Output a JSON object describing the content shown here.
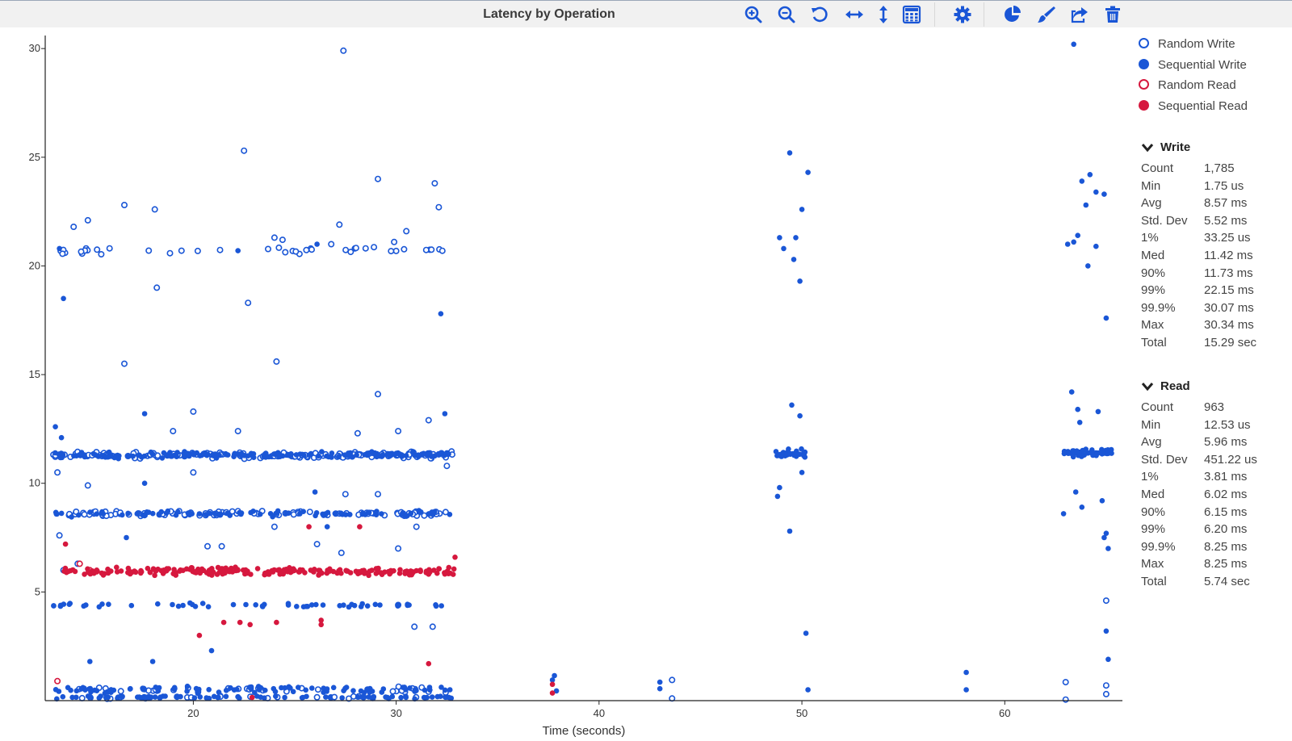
{
  "toolbar": {
    "title": "Latency by Operation",
    "icons": [
      "zoom-in-icon",
      "zoom-out-icon",
      "reset-icon",
      "horizontal-zoom-icon",
      "vertical-zoom-icon",
      "calculator-icon",
      "gear-icon",
      "pie-chart-icon",
      "paint-brush-icon",
      "share-icon",
      "trash-icon"
    ]
  },
  "legend": [
    {
      "label": "Random Write",
      "color": "#1a56d6",
      "filled": false
    },
    {
      "label": "Sequential Write",
      "color": "#1a56d6",
      "filled": true
    },
    {
      "label": "Random Read",
      "color": "#d6183e",
      "filled": false
    },
    {
      "label": "Sequential Read",
      "color": "#d6183e",
      "filled": true
    }
  ],
  "stats": {
    "write": {
      "title": "Write",
      "rows": [
        {
          "k": "Count",
          "v": "1,785"
        },
        {
          "k": "Min",
          "v": "1.75 us"
        },
        {
          "k": "Avg",
          "v": "8.57 ms"
        },
        {
          "k": "Std. Dev",
          "v": "5.52 ms"
        },
        {
          "k": "1%",
          "v": "33.25 us"
        },
        {
          "k": "Med",
          "v": "11.42 ms"
        },
        {
          "k": "90%",
          "v": "11.73 ms"
        },
        {
          "k": "99%",
          "v": "22.15 ms"
        },
        {
          "k": "99.9%",
          "v": "30.07 ms"
        },
        {
          "k": "Max",
          "v": "30.34 ms"
        },
        {
          "k": "Total",
          "v": "15.29 sec"
        }
      ]
    },
    "read": {
      "title": "Read",
      "rows": [
        {
          "k": "Count",
          "v": "963"
        },
        {
          "k": "Min",
          "v": "12.53 us"
        },
        {
          "k": "Avg",
          "v": "5.96 ms"
        },
        {
          "k": "Std. Dev",
          "v": "451.22 us"
        },
        {
          "k": "1%",
          "v": "3.81 ms"
        },
        {
          "k": "Med",
          "v": "6.02 ms"
        },
        {
          "k": "90%",
          "v": "6.15 ms"
        },
        {
          "k": "99%",
          "v": "6.20 ms"
        },
        {
          "k": "99.9%",
          "v": "8.25 ms"
        },
        {
          "k": "Max",
          "v": "8.25 ms"
        },
        {
          "k": "Total",
          "v": "5.74 sec"
        }
      ]
    }
  },
  "chart_data": {
    "type": "scatter",
    "title": "Latency by Operation",
    "xlabel": "Time (seconds)",
    "ylabel": "",
    "xlim": [
      12.7,
      65.8
    ],
    "ylim": [
      0,
      30.6
    ],
    "xticks": [
      20,
      30,
      40,
      50,
      60
    ],
    "yticks": [
      5,
      10,
      15,
      20,
      25,
      30
    ],
    "grid": false,
    "legend_position": "top-right",
    "series": [
      {
        "name": "Random Write",
        "color": "#1a56d6",
        "filled": false,
        "bands": [
          {
            "x": [
              13.1,
              32.8
            ],
            "y": 11.3,
            "n": 150,
            "jitter": 0.18
          },
          {
            "x": [
              13.1,
              32.8
            ],
            "y": 8.6,
            "n": 95,
            "jitter": 0.15
          },
          {
            "x": [
              13.1,
              32.8
            ],
            "y": 20.7,
            "n": 40,
            "jitter": 0.18
          },
          {
            "x": [
              13.1,
              32.8
            ],
            "y": 0.5,
            "n": 35,
            "jitter": 0.15
          },
          {
            "x": [
              13.1,
              32.8
            ],
            "y": 0.15,
            "n": 25,
            "jitter": 0.08
          }
        ],
        "points": [
          [
            27.4,
            29.9
          ],
          [
            22.5,
            25.3
          ],
          [
            29.1,
            24.0
          ],
          [
            31.9,
            23.8
          ],
          [
            16.6,
            22.8
          ],
          [
            18.1,
            22.6
          ],
          [
            32.1,
            22.7
          ],
          [
            14.8,
            22.1
          ],
          [
            14.1,
            21.8
          ],
          [
            27.2,
            21.9
          ],
          [
            30.5,
            21.6
          ],
          [
            24.0,
            21.3
          ],
          [
            24.4,
            21.2
          ],
          [
            29.9,
            21.1
          ],
          [
            26.8,
            21.0
          ],
          [
            22.7,
            18.3
          ],
          [
            18.2,
            19.0
          ],
          [
            16.6,
            15.5
          ],
          [
            24.1,
            15.6
          ],
          [
            29.1,
            14.1
          ],
          [
            20.0,
            13.3
          ],
          [
            22.2,
            12.4
          ],
          [
            19.0,
            12.4
          ],
          [
            28.1,
            12.3
          ],
          [
            30.1,
            12.4
          ],
          [
            31.6,
            12.9
          ],
          [
            13.3,
            10.5
          ],
          [
            20.0,
            10.5
          ],
          [
            32.5,
            10.8
          ],
          [
            14.8,
            9.9
          ],
          [
            27.5,
            9.5
          ],
          [
            29.1,
            9.5
          ],
          [
            24.0,
            8.0
          ],
          [
            31.0,
            8.0
          ],
          [
            13.4,
            7.6
          ],
          [
            20.7,
            7.1
          ],
          [
            21.4,
            7.1
          ],
          [
            26.1,
            7.2
          ],
          [
            27.3,
            6.8
          ],
          [
            30.1,
            7.0
          ],
          [
            13.6,
            6.0
          ],
          [
            14.3,
            6.3
          ],
          [
            30.1,
            4.4
          ],
          [
            30.9,
            3.4
          ],
          [
            31.8,
            3.4
          ],
          [
            43.6,
            0.95
          ],
          [
            43.6,
            0.1
          ],
          [
            63.0,
            0.85
          ],
          [
            63.0,
            0.05
          ],
          [
            65.0,
            4.6
          ],
          [
            65.0,
            0.7
          ],
          [
            65.0,
            0.3
          ]
        ]
      },
      {
        "name": "Sequential Write",
        "color": "#1a56d6",
        "filled": true,
        "bands": [
          {
            "x": [
              13.1,
              32.8
            ],
            "y": 11.3,
            "n": 170,
            "jitter": 0.18
          },
          {
            "x": [
              13.1,
              32.8
            ],
            "y": 8.6,
            "n": 90,
            "jitter": 0.15
          },
          {
            "x": [
              13.1,
              32.8
            ],
            "y": 4.4,
            "n": 55,
            "jitter": 0.12
          },
          {
            "x": [
              13.1,
              32.8
            ],
            "y": 0.5,
            "n": 90,
            "jitter": 0.2
          },
          {
            "x": [
              13.1,
              32.8
            ],
            "y": 0.15,
            "n": 80,
            "jitter": 0.08
          },
          {
            "x": [
              48.7,
              50.2
            ],
            "y": 11.4,
            "n": 28,
            "jitter": 0.22
          },
          {
            "x": [
              62.9,
              65.3
            ],
            "y": 11.4,
            "n": 50,
            "jitter": 0.2
          }
        ],
        "points": [
          [
            13.4,
            20.8
          ],
          [
            13.6,
            18.5
          ],
          [
            22.2,
            20.7
          ],
          [
            26.1,
            21.0
          ],
          [
            32.2,
            17.8
          ],
          [
            32.4,
            13.2
          ],
          [
            17.6,
            13.2
          ],
          [
            13.2,
            12.6
          ],
          [
            13.5,
            12.1
          ],
          [
            16.7,
            7.5
          ],
          [
            17.6,
            10.0
          ],
          [
            26.0,
            9.6
          ],
          [
            26.6,
            8.0
          ],
          [
            20.9,
            2.3
          ],
          [
            14.9,
            1.8
          ],
          [
            18.0,
            1.8
          ],
          [
            37.8,
            1.15
          ],
          [
            37.7,
            0.95
          ],
          [
            37.9,
            0.45
          ],
          [
            43.0,
            0.85
          ],
          [
            43.0,
            0.55
          ],
          [
            58.1,
            1.3
          ],
          [
            58.1,
            0.5
          ],
          [
            49.4,
            25.2
          ],
          [
            50.3,
            24.3
          ],
          [
            50.0,
            22.6
          ],
          [
            48.9,
            21.3
          ],
          [
            49.1,
            20.8
          ],
          [
            49.7,
            21.3
          ],
          [
            49.6,
            20.3
          ],
          [
            49.9,
            19.3
          ],
          [
            49.5,
            13.6
          ],
          [
            49.9,
            13.1
          ],
          [
            48.9,
            9.8
          ],
          [
            48.8,
            9.4
          ],
          [
            50.0,
            10.5
          ],
          [
            49.4,
            7.8
          ],
          [
            50.2,
            3.1
          ],
          [
            50.3,
            0.5
          ],
          [
            63.4,
            30.2
          ],
          [
            64.2,
            24.2
          ],
          [
            63.8,
            23.9
          ],
          [
            64.5,
            23.4
          ],
          [
            64.9,
            23.3
          ],
          [
            64.0,
            22.8
          ],
          [
            63.1,
            21.0
          ],
          [
            63.4,
            21.1
          ],
          [
            63.6,
            21.4
          ],
          [
            64.5,
            20.9
          ],
          [
            64.1,
            20.0
          ],
          [
            65.0,
            17.6
          ],
          [
            63.3,
            14.2
          ],
          [
            63.6,
            13.4
          ],
          [
            63.7,
            12.8
          ],
          [
            64.6,
            13.3
          ],
          [
            62.9,
            8.6
          ],
          [
            63.5,
            9.6
          ],
          [
            63.8,
            8.9
          ],
          [
            64.8,
            9.2
          ],
          [
            65.0,
            7.7
          ],
          [
            64.9,
            7.5
          ],
          [
            65.1,
            7.0
          ],
          [
            65.0,
            3.2
          ],
          [
            65.1,
            1.9
          ]
        ]
      },
      {
        "name": "Random Read",
        "color": "#d6183e",
        "filled": false,
        "bands": [],
        "points": [
          [
            13.3,
            0.9
          ],
          [
            14.4,
            6.3
          ],
          [
            14.9,
            6.0
          ]
        ]
      },
      {
        "name": "Sequential Read",
        "color": "#d6183e",
        "filled": true,
        "bands": [
          {
            "x": [
              13.6,
              32.9
            ],
            "y": 5.95,
            "n": 220,
            "jitter": 0.22
          }
        ],
        "points": [
          [
            13.7,
            7.2
          ],
          [
            32.9,
            6.6
          ],
          [
            25.7,
            8.0
          ],
          [
            28.2,
            8.0
          ],
          [
            20.3,
            3.0
          ],
          [
            21.5,
            3.6
          ],
          [
            22.3,
            3.6
          ],
          [
            22.8,
            3.5
          ],
          [
            24.1,
            3.6
          ],
          [
            26.3,
            3.7
          ],
          [
            26.3,
            3.5
          ],
          [
            31.6,
            1.7
          ],
          [
            22.9,
            0.15
          ],
          [
            37.7,
            0.75
          ],
          [
            37.7,
            0.35
          ]
        ]
      }
    ]
  }
}
